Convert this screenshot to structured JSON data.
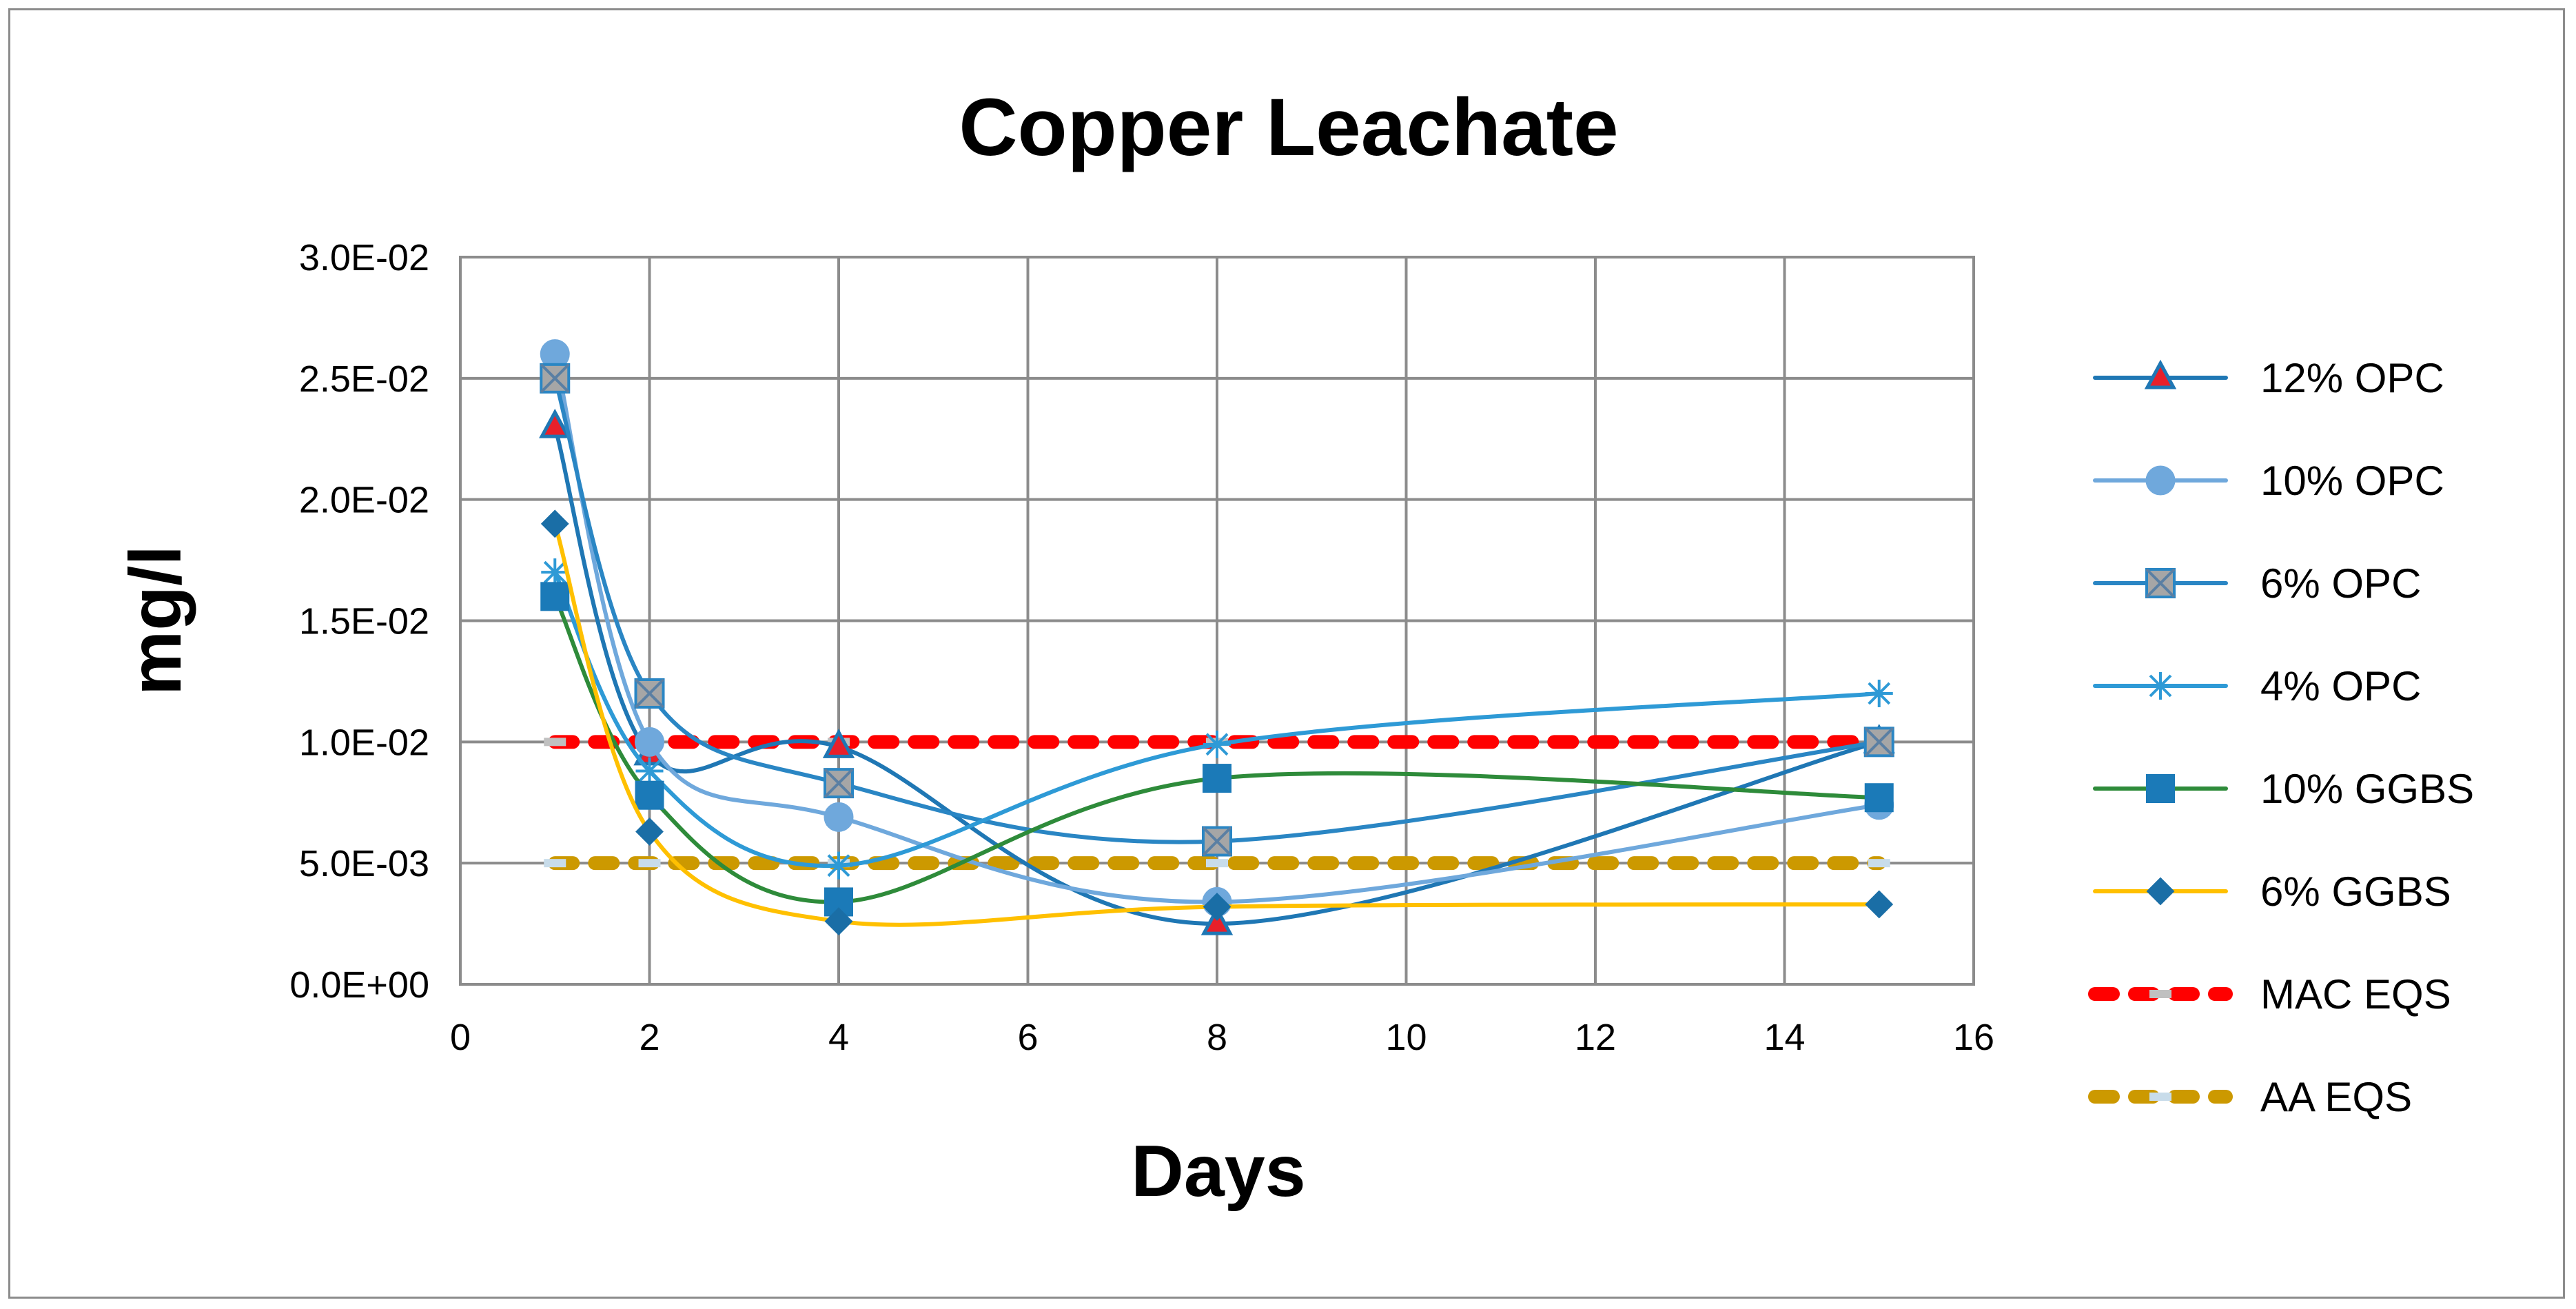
{
  "chart_data": {
    "type": "line",
    "title": "Copper Leachate",
    "xlabel": "Days",
    "ylabel": "mg/l",
    "xlim": [
      0,
      16
    ],
    "ylim": [
      0,
      0.03
    ],
    "x_ticks": [
      "0",
      "2",
      "4",
      "6",
      "8",
      "10",
      "12",
      "14",
      "16"
    ],
    "y_ticks": [
      "0.0E+00",
      "5.0E-03",
      "1.0E-02",
      "1.5E-02",
      "2.0E-02",
      "2.5E-02",
      "3.0E-02"
    ],
    "grid": true,
    "legend_position": "right",
    "series": [
      {
        "name": "12% OPC",
        "x": [
          1,
          2,
          4,
          8,
          15
        ],
        "y": [
          0.023,
          0.0095,
          0.0098,
          0.0025,
          0.01
        ],
        "color": "#1f77b4",
        "marker": "triangle",
        "marker_fill": "#e8202a",
        "smooth": true
      },
      {
        "name": "10% OPC",
        "x": [
          1,
          2,
          4,
          8,
          15
        ],
        "y": [
          0.026,
          0.01,
          0.0069,
          0.0034,
          0.0074
        ],
        "color": "#6fa8dc",
        "marker": "circle",
        "marker_fill": "#6fa8dc",
        "smooth": true
      },
      {
        "name": "6% OPC",
        "x": [
          1,
          2,
          4,
          8,
          15
        ],
        "y": [
          0.025,
          0.012,
          0.0083,
          0.0059,
          0.01
        ],
        "color": "#2a86c4",
        "marker": "square-x",
        "marker_fill": "#a6a6a6",
        "smooth": true
      },
      {
        "name": "4% OPC",
        "x": [
          1,
          2,
          4,
          8,
          15
        ],
        "y": [
          0.017,
          0.0088,
          0.0049,
          0.0099,
          0.012
        ],
        "color": "#2e9ad6",
        "marker": "asterisk",
        "marker_fill": "#2e9ad6",
        "smooth": true
      },
      {
        "name": "10% GGBS",
        "x": [
          1,
          2,
          4,
          8,
          15
        ],
        "y": [
          0.016,
          0.0078,
          0.0034,
          0.0085,
          0.0077
        ],
        "color": "#2e8b3a",
        "marker": "square",
        "marker_fill": "#1b7ab8",
        "smooth": true
      },
      {
        "name": "6% GGBS",
        "x": [
          1,
          2,
          4,
          8,
          15
        ],
        "y": [
          0.019,
          0.0063,
          0.0026,
          0.0032,
          0.0033
        ],
        "color": "#ffc000",
        "marker": "diamond",
        "marker_fill": "#1a6ea6",
        "smooth": true
      },
      {
        "name": "MAC EQS",
        "x": [
          1,
          2,
          4,
          8,
          15
        ],
        "y": [
          0.01,
          0.01,
          0.01,
          0.01,
          0.01
        ],
        "color": "#ff0000",
        "marker": "dash",
        "marker_fill": "#c0c0c0",
        "dashed": true,
        "smooth": false
      },
      {
        "name": "AA EQS",
        "x": [
          1,
          2,
          4,
          8,
          15
        ],
        "y": [
          0.005,
          0.005,
          0.005,
          0.005,
          0.005
        ],
        "color": "#cc9900",
        "marker": "dash",
        "marker_fill": "#c8dcea",
        "dashed": true,
        "smooth": false
      }
    ]
  }
}
